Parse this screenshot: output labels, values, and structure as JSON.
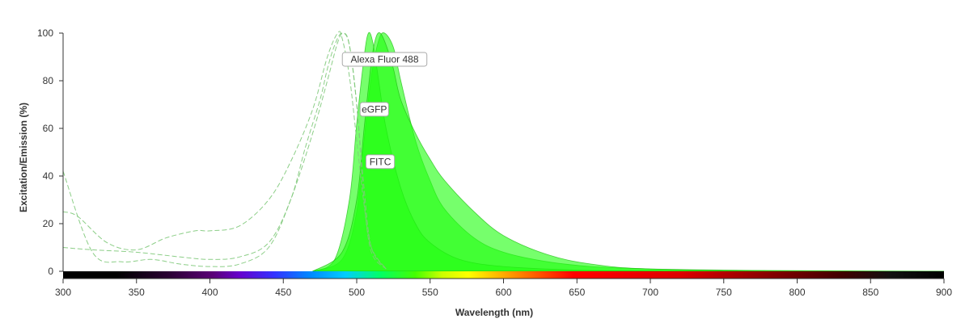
{
  "chart_data": {
    "type": "area",
    "xlabel": "Wavelength (nm)",
    "ylabel": "Excitation/Emission (%)",
    "xlim": [
      300,
      900
    ],
    "ylim": [
      0,
      100
    ],
    "x_ticks": [
      300,
      350,
      400,
      450,
      500,
      550,
      600,
      650,
      700,
      750,
      800,
      850,
      900
    ],
    "y_ticks": [
      0,
      20,
      40,
      60,
      80,
      100
    ],
    "grid": false,
    "spectrum_bar": true,
    "colors": {
      "emission_fill": "#22ff11",
      "emission_stroke": "#18b80c",
      "excitation_stroke": "#7fc97a",
      "axis": "#333333"
    },
    "series": [
      {
        "name": "Alexa Fluor 488",
        "excitation": {
          "x": [
            300,
            320,
            350,
            380,
            400,
            420,
            440,
            455,
            465,
            475,
            480,
            485,
            490,
            495,
            500,
            505,
            510,
            520
          ],
          "y": [
            10,
            9,
            8,
            6,
            5,
            6,
            12,
            30,
            52,
            72,
            85,
            95,
            100,
            95,
            70,
            30,
            8,
            1
          ]
        },
        "emission": {
          "x": [
            470,
            490,
            500,
            505,
            510,
            515,
            519,
            525,
            530,
            540,
            550,
            560,
            580,
            600,
            630,
            660,
            700,
            750,
            800,
            900
          ],
          "y": [
            0,
            5,
            25,
            55,
            82,
            97,
            100,
            94,
            80,
            55,
            38,
            26,
            14,
            8,
            4,
            2,
            1,
            0.5,
            0.3,
            0
          ]
        }
      },
      {
        "name": "eGFP",
        "excitation": {
          "x": [
            300,
            310,
            330,
            350,
            370,
            390,
            400,
            420,
            440,
            455,
            470,
            480,
            487,
            490,
            495,
            500,
            505,
            510,
            520
          ],
          "y": [
            25,
            23,
            12,
            9,
            14,
            17,
            17,
            19,
            30,
            46,
            68,
            90,
            100,
            98,
            82,
            55,
            28,
            10,
            1
          ]
        },
        "emission": {
          "x": [
            470,
            485,
            495,
            500,
            505,
            508,
            511,
            515,
            520,
            530,
            540,
            550,
            570,
            600,
            650,
            700,
            800,
            900
          ],
          "y": [
            0,
            5,
            30,
            62,
            90,
            100,
            96,
            80,
            60,
            35,
            20,
            12,
            5,
            2,
            0.5,
            0.2,
            0,
            0
          ]
        }
      },
      {
        "name": "FITC",
        "excitation": {
          "x": [
            300,
            320,
            340,
            360,
            380,
            400,
            420,
            440,
            455,
            470,
            480,
            487,
            491,
            495,
            500,
            505,
            510,
            520
          ],
          "y": [
            42,
            8,
            4,
            5,
            3,
            2,
            3,
            10,
            30,
            58,
            80,
            96,
            100,
            95,
            70,
            35,
            10,
            1
          ]
        },
        "emission": {
          "x": [
            470,
            490,
            500,
            505,
            510,
            513,
            516,
            520,
            525,
            530,
            540,
            550,
            560,
            580,
            600,
            630,
            660,
            700,
            800,
            900
          ],
          "y": [
            0,
            8,
            30,
            60,
            88,
            98,
            100,
            95,
            85,
            72,
            58,
            47,
            38,
            25,
            15,
            7,
            3,
            1,
            0,
            0
          ]
        }
      }
    ],
    "annotations": [
      {
        "text": "Alexa Fluor 488",
        "x": 519,
        "y": 89
      },
      {
        "text": "eGFP",
        "x": 512,
        "y": 68
      },
      {
        "text": "FITC",
        "x": 516,
        "y": 46
      }
    ]
  }
}
